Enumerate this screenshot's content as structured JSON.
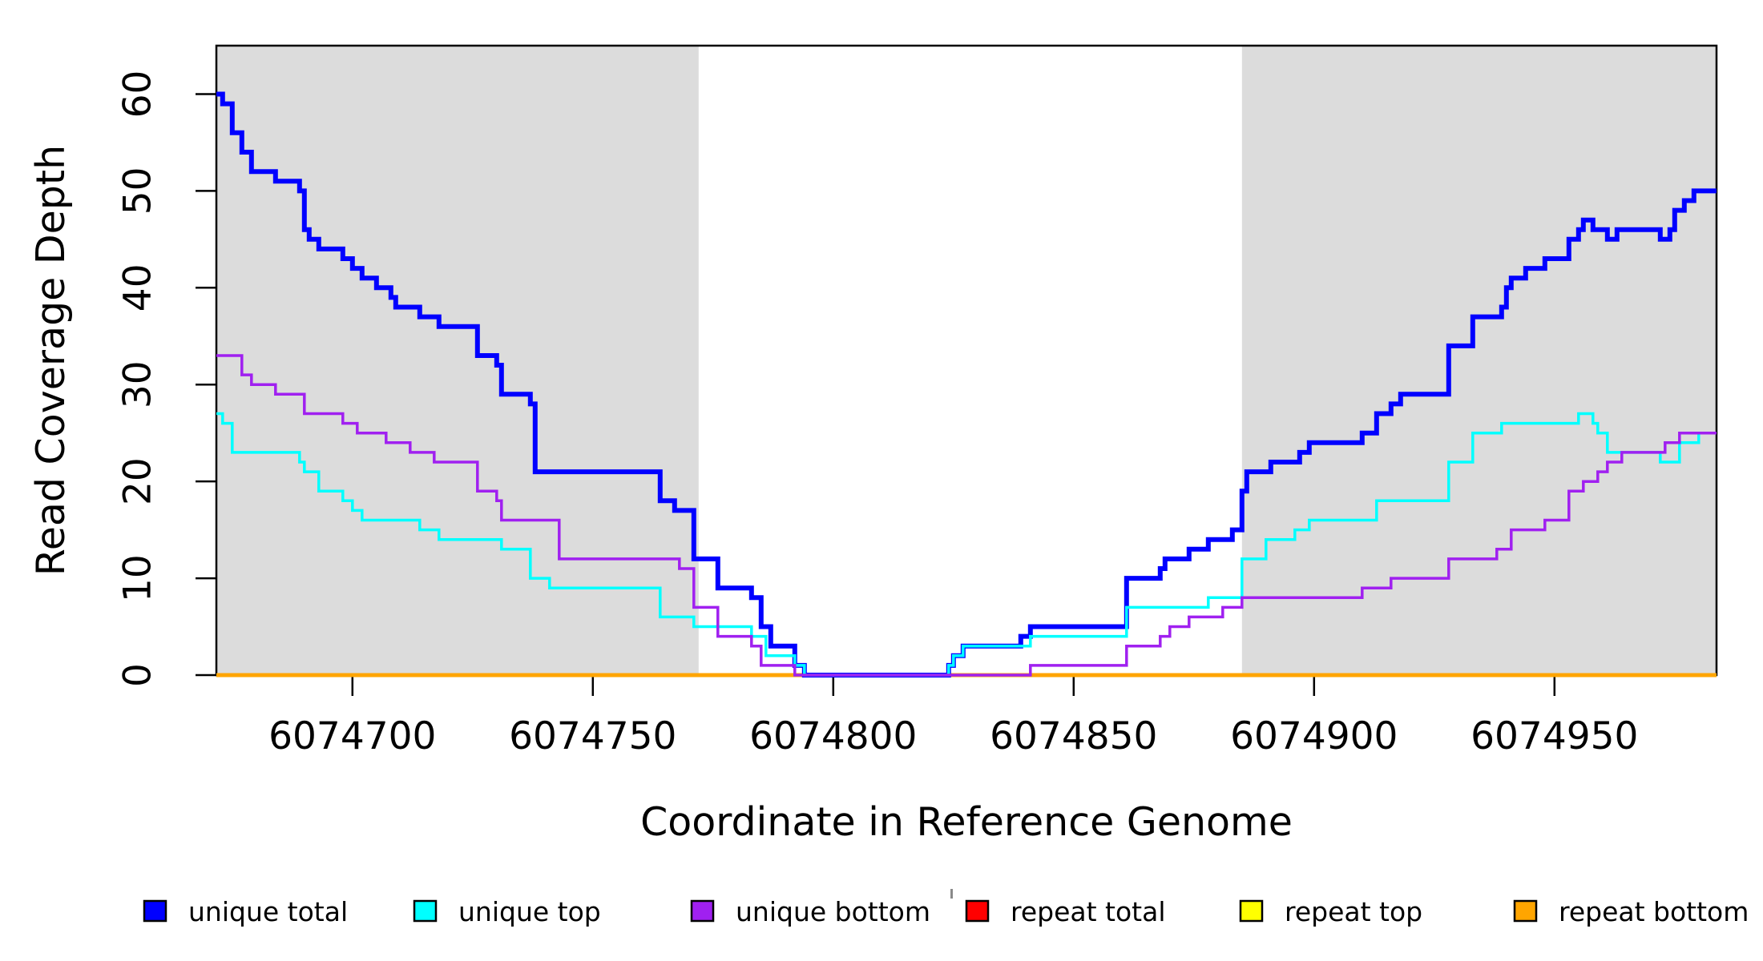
{
  "figure": {
    "background": "#ffffff",
    "plot_background": "#ffffff"
  },
  "chart_data": {
    "type": "line",
    "subtype": "step-after",
    "title": "",
    "xlabel": "Coordinate in Reference Genome",
    "ylabel": "Read Coverage Depth",
    "xlim": [
      6074671.7,
      6074983.7
    ],
    "ylim": [
      0,
      65
    ],
    "grid": false,
    "legend_position": "bottom",
    "xticks": {
      "values": [
        6074700,
        6074750,
        6074800,
        6074850,
        6074900,
        6074950
      ],
      "labels": [
        "6074700",
        "6074750",
        "6074800",
        "6074850",
        "6074900",
        "6074950"
      ]
    },
    "yticks": {
      "values": [
        0,
        10,
        20,
        30,
        40,
        50,
        60
      ],
      "labels": [
        "0",
        "10",
        "20",
        "30",
        "40",
        "50",
        "60"
      ]
    },
    "shaded_regions": [
      {
        "name": "left-repeat-flank",
        "x0": 6074671.7,
        "x1": 6074772,
        "color": "#DCDCDC"
      },
      {
        "name": "right-repeat-flank",
        "x0": 6074885,
        "x1": 6074983.7,
        "color": "#DCDCDC"
      }
    ],
    "series": [
      {
        "name": "unique total",
        "color": "#0000FF",
        "width": 6,
        "points": [
          [
            6074672,
            60
          ],
          [
            6074673,
            59
          ],
          [
            6074675,
            56
          ],
          [
            6074677,
            54
          ],
          [
            6074679,
            52
          ],
          [
            6074684,
            51
          ],
          [
            6074689,
            50
          ],
          [
            6074690,
            46
          ],
          [
            6074691,
            45
          ],
          [
            6074693,
            44
          ],
          [
            6074698,
            43
          ],
          [
            6074700,
            42
          ],
          [
            6074702,
            41
          ],
          [
            6074705,
            40
          ],
          [
            6074708,
            39
          ],
          [
            6074709,
            38
          ],
          [
            6074714,
            37
          ],
          [
            6074718,
            36
          ],
          [
            6074726,
            33
          ],
          [
            6074730,
            32
          ],
          [
            6074731,
            29
          ],
          [
            6074737,
            28
          ],
          [
            6074738,
            21
          ],
          [
            6074764,
            18
          ],
          [
            6074767,
            17
          ],
          [
            6074771,
            12
          ],
          [
            6074776,
            9
          ],
          [
            6074783,
            8
          ],
          [
            6074785,
            5
          ],
          [
            6074787,
            3
          ],
          [
            6074792,
            1
          ],
          [
            6074794,
            0
          ],
          [
            6074824,
            1
          ],
          [
            6074825,
            2
          ],
          [
            6074827,
            3
          ],
          [
            6074839,
            4
          ],
          [
            6074841,
            5
          ],
          [
            6074861,
            10
          ],
          [
            6074868,
            11
          ],
          [
            6074869,
            12
          ],
          [
            6074874,
            13
          ],
          [
            6074878,
            14
          ],
          [
            6074883,
            15
          ],
          [
            6074885,
            19
          ],
          [
            6074886,
            21
          ],
          [
            6074891,
            22
          ],
          [
            6074897,
            23
          ],
          [
            6074899,
            24
          ],
          [
            6074910,
            25
          ],
          [
            6074913,
            27
          ],
          [
            6074916,
            28
          ],
          [
            6074918,
            29
          ],
          [
            6074928,
            34
          ],
          [
            6074933,
            37
          ],
          [
            6074939,
            38
          ],
          [
            6074940,
            40
          ],
          [
            6074941,
            41
          ],
          [
            6074944,
            42
          ],
          [
            6074948,
            43
          ],
          [
            6074953,
            45
          ],
          [
            6074955,
            46
          ],
          [
            6074956,
            47
          ],
          [
            6074958,
            46
          ],
          [
            6074961,
            45
          ],
          [
            6074963,
            46
          ],
          [
            6074972,
            45
          ],
          [
            6074974,
            46
          ],
          [
            6074975,
            48
          ],
          [
            6074977,
            49
          ],
          [
            6074979,
            50
          ]
        ]
      },
      {
        "name": "unique top",
        "color": "#00FFFF",
        "width": 3.5,
        "points": [
          [
            6074672,
            27
          ],
          [
            6074673,
            26
          ],
          [
            6074675,
            23
          ],
          [
            6074689,
            22
          ],
          [
            6074690,
            21
          ],
          [
            6074693,
            19
          ],
          [
            6074698,
            18
          ],
          [
            6074700,
            17
          ],
          [
            6074702,
            16
          ],
          [
            6074714,
            15
          ],
          [
            6074718,
            14
          ],
          [
            6074731,
            13
          ],
          [
            6074737,
            10
          ],
          [
            6074741,
            9
          ],
          [
            6074764,
            6
          ],
          [
            6074771,
            5
          ],
          [
            6074783,
            4
          ],
          [
            6074786,
            2
          ],
          [
            6074792,
            1
          ],
          [
            6074794,
            0
          ],
          [
            6074824,
            1
          ],
          [
            6074825,
            2
          ],
          [
            6074827,
            3
          ],
          [
            6074841,
            4
          ],
          [
            6074861,
            7
          ],
          [
            6074878,
            8
          ],
          [
            6074885,
            12
          ],
          [
            6074890,
            14
          ],
          [
            6074896,
            15
          ],
          [
            6074899,
            16
          ],
          [
            6074913,
            18
          ],
          [
            6074928,
            22
          ],
          [
            6074933,
            25
          ],
          [
            6074939,
            26
          ],
          [
            6074955,
            27
          ],
          [
            6074958,
            26
          ],
          [
            6074959,
            25
          ],
          [
            6074961,
            23
          ],
          [
            6074972,
            22
          ],
          [
            6074976,
            24
          ],
          [
            6074980,
            25
          ]
        ]
      },
      {
        "name": "unique bottom",
        "color": "#A020F0",
        "width": 3.5,
        "points": [
          [
            6074672,
            33
          ],
          [
            6074677,
            31
          ],
          [
            6074679,
            30
          ],
          [
            6074684,
            29
          ],
          [
            6074690,
            27
          ],
          [
            6074698,
            26
          ],
          [
            6074701,
            25
          ],
          [
            6074707,
            24
          ],
          [
            6074712,
            23
          ],
          [
            6074717,
            22
          ],
          [
            6074726,
            19
          ],
          [
            6074730,
            18
          ],
          [
            6074731,
            16
          ],
          [
            6074743,
            12
          ],
          [
            6074768,
            11
          ],
          [
            6074771,
            7
          ],
          [
            6074776,
            4
          ],
          [
            6074783,
            3
          ],
          [
            6074785,
            1
          ],
          [
            6074792,
            0
          ],
          [
            6074841,
            1
          ],
          [
            6074861,
            3
          ],
          [
            6074868,
            4
          ],
          [
            6074870,
            5
          ],
          [
            6074874,
            6
          ],
          [
            6074881,
            7
          ],
          [
            6074885,
            8
          ],
          [
            6074910,
            9
          ],
          [
            6074916,
            10
          ],
          [
            6074928,
            12
          ],
          [
            6074938,
            13
          ],
          [
            6074941,
            15
          ],
          [
            6074948,
            16
          ],
          [
            6074953,
            19
          ],
          [
            6074956,
            20
          ],
          [
            6074959,
            21
          ],
          [
            6074961,
            22
          ],
          [
            6074964,
            23
          ],
          [
            6074973,
            24
          ],
          [
            6074976,
            25
          ]
        ]
      },
      {
        "name": "repeat total",
        "color": "#FF0000",
        "width": 3.5,
        "points": [
          [
            6074672,
            0
          ]
        ]
      },
      {
        "name": "repeat top",
        "color": "#FFFF00",
        "width": 3.5,
        "points": [
          [
            6074672,
            0
          ]
        ]
      },
      {
        "name": "repeat bottom",
        "color": "#FFA500",
        "width": 5,
        "points": [
          [
            6074672,
            0
          ]
        ]
      }
    ],
    "draw_order": [
      "repeat total",
      "repeat top",
      "repeat bottom",
      "unique total",
      "unique top",
      "unique bottom"
    ],
    "legend": {
      "items": [
        {
          "label": "unique total",
          "color": "#0000FF"
        },
        {
          "label": "unique top",
          "color": "#00FFFF"
        },
        {
          "label": "unique bottom",
          "color": "#A020F0"
        },
        {
          "label": "repeat total",
          "color": "#FF0000"
        },
        {
          "label": "repeat top",
          "color": "#FFFF00"
        },
        {
          "label": "repeat bottom",
          "color": "#FFA500"
        }
      ]
    }
  }
}
